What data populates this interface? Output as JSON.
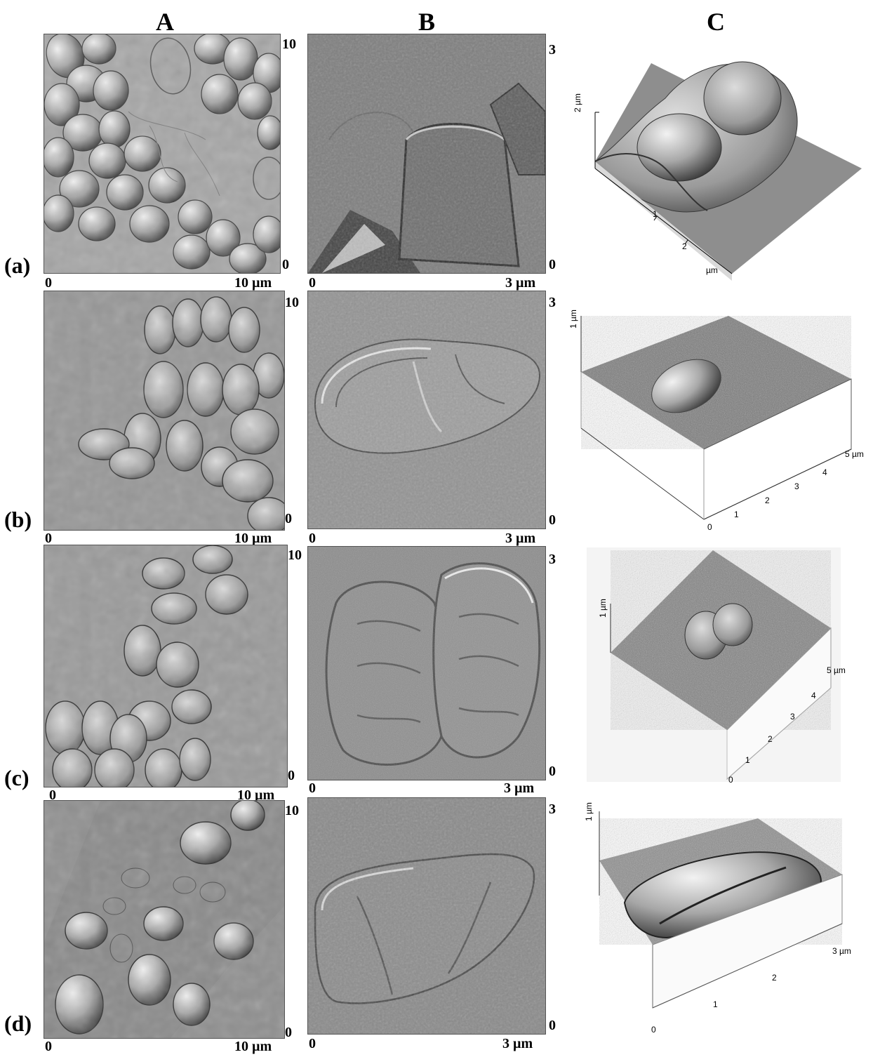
{
  "column_headers": [
    "A",
    "B",
    "C"
  ],
  "rows": [
    {
      "label": "(a)",
      "A": {
        "x0": "0",
        "x1": "10 µm",
        "y0": "0",
        "y1": "10"
      },
      "B": {
        "x0": "0",
        "x1": "3 µm",
        "y0": "0",
        "y1": "3"
      },
      "C": {
        "z_label": "2 µm",
        "x_ticks": [
          "1",
          "2"
        ],
        "unit": "µm"
      }
    },
    {
      "label": "(b)",
      "A": {
        "x0": "0",
        "x1": "10 µm",
        "y0": "0",
        "y1": "10"
      },
      "B": {
        "x0": "0",
        "x1": "3 µm",
        "y0": "0",
        "y1": "3"
      },
      "C": {
        "z_label": "1 µm",
        "x_ticks": [
          "0",
          "1",
          "2",
          "3",
          "4",
          "5 µm"
        ]
      }
    },
    {
      "label": "(c)",
      "A": {
        "x0": "0",
        "x1": "10 µm",
        "y0": "0",
        "y1": "10"
      },
      "B": {
        "x0": "0",
        "x1": "3 µm",
        "y0": "0",
        "y1": "3"
      },
      "C": {
        "z_label": "1 µm",
        "x_ticks": [
          "0",
          "1",
          "2",
          "3",
          "4",
          "5 µm"
        ]
      }
    },
    {
      "label": "(d)",
      "A": {
        "x0": "0",
        "x1": "10 µm",
        "y0": "0",
        "y1": "10"
      },
      "B": {
        "x0": "0",
        "x1": "3 µm",
        "y0": "0",
        "y1": "3"
      },
      "C": {
        "z_label": "1 µm",
        "x_ticks": [
          "0",
          "1",
          "2",
          "3 µm"
        ]
      }
    }
  ]
}
